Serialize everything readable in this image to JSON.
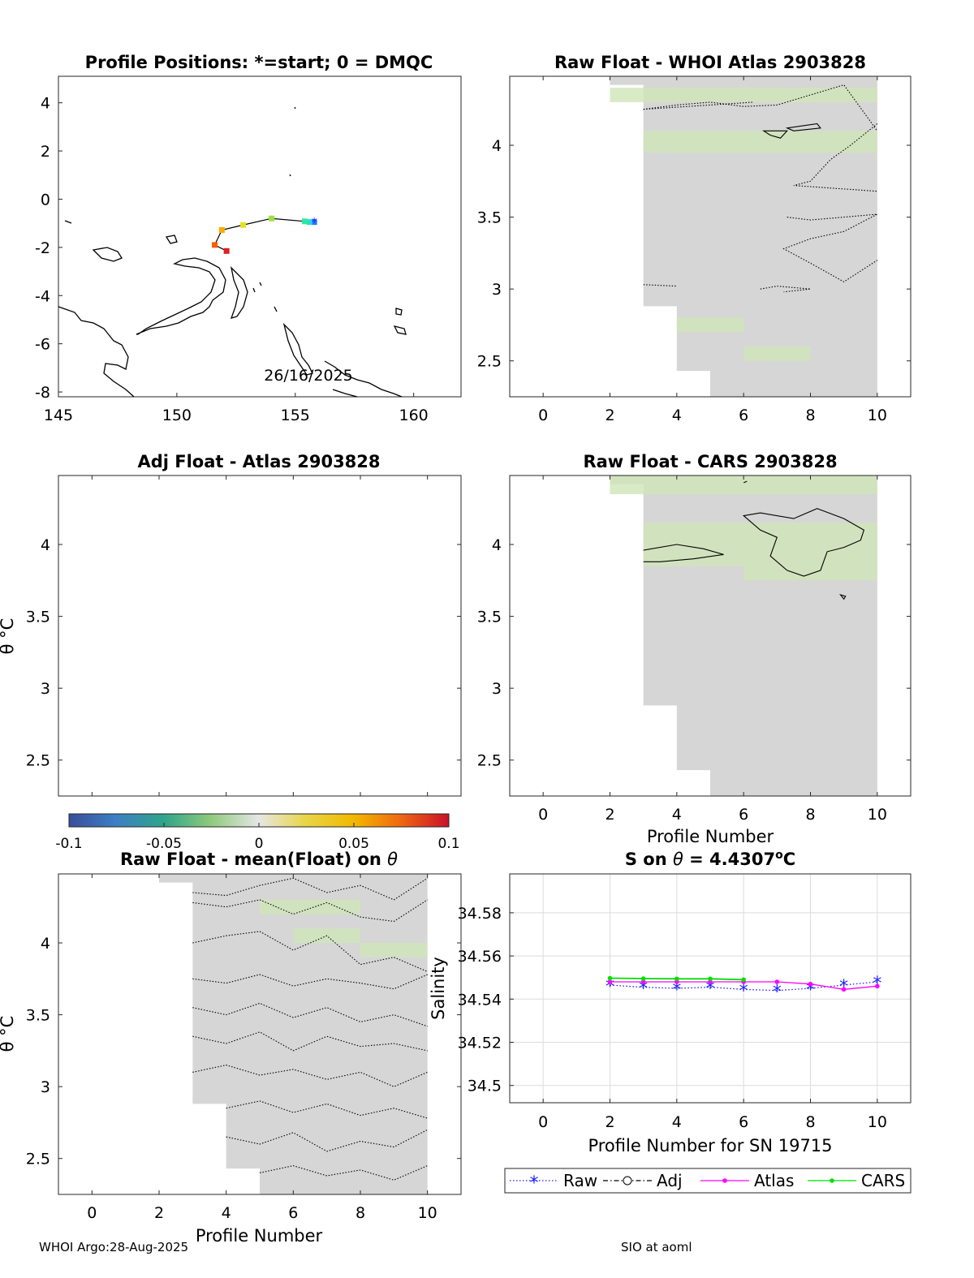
{
  "chart_data": [
    {
      "type": "map",
      "title": "Profile Positions: *=start; 0 = DMQC",
      "date_label": "26/16/2025",
      "xlim": [
        145,
        162
      ],
      "ylim": [
        -8.2,
        5.1
      ],
      "xticks": [
        145,
        150,
        155,
        160
      ],
      "yticks": [
        -8,
        -6,
        -4,
        -2,
        0,
        2,
        4
      ],
      "track": [
        {
          "lon": 155.8,
          "lat": -0.95,
          "color": "#1f77ff"
        },
        {
          "lon": 155.6,
          "lat": -0.95,
          "color": "#2fd6d6"
        },
        {
          "lon": 155.4,
          "lat": -0.92,
          "color": "#30e8a0"
        },
        {
          "lon": 154.0,
          "lat": -0.8,
          "color": "#9be23a"
        },
        {
          "lon": 152.8,
          "lat": -1.07,
          "color": "#e8e020"
        },
        {
          "lon": 151.9,
          "lat": -1.28,
          "color": "#ffaa00"
        },
        {
          "lon": 151.6,
          "lat": -1.9,
          "color": "#ff5a00"
        },
        {
          "lon": 152.1,
          "lat": -2.15,
          "color": "#e02020"
        }
      ]
    },
    {
      "type": "heatmap",
      "title": "Raw Float - WHOI Atlas  2903828",
      "xlabel": "",
      "ylabel": "",
      "xlim": [
        -1,
        11
      ],
      "ylim": [
        2.25,
        4.48
      ],
      "xticks": [
        0,
        2,
        4,
        6,
        8,
        10
      ],
      "yticks": [
        2.5,
        3,
        3.5,
        4
      ]
    },
    {
      "type": "heatmap",
      "title": "Adj Float - Atlas  2903828",
      "xlabel": "",
      "ylabel": "θ °C",
      "xlim": [
        -1,
        11
      ],
      "ylim": [
        2.25,
        4.48
      ],
      "xticks": [],
      "yticks": [
        2.5,
        3,
        3.5,
        4
      ]
    },
    {
      "type": "heatmap",
      "title": "Raw Float - CARS  2903828",
      "xlabel": "Profile Number",
      "ylabel": "",
      "xlim": [
        -1,
        11
      ],
      "ylim": [
        2.25,
        4.48
      ],
      "xticks": [
        0,
        2,
        4,
        6,
        8,
        10
      ],
      "yticks": [
        2.5,
        3,
        3.5,
        4
      ]
    },
    {
      "type": "colorbar",
      "range": [
        -0.1,
        0.1
      ],
      "ticks": [
        "-0.1",
        "-0.05",
        "0",
        "0.05",
        "0.1"
      ]
    },
    {
      "type": "heatmap",
      "title": "Raw Float - mean(Float) on θ",
      "xlabel": "Profile Number",
      "ylabel": "θ °C",
      "xlim": [
        -1,
        11
      ],
      "ylim": [
        2.25,
        4.48
      ],
      "xticks": [
        0,
        2,
        4,
        6,
        8,
        10
      ],
      "yticks": [
        2.5,
        3,
        3.5,
        4
      ]
    },
    {
      "type": "line",
      "title": "S on θ = 4.4307°C",
      "xlabel": "Profile Number for SN 19715",
      "ylabel": "Salinity",
      "xlim": [
        -1,
        11
      ],
      "ylim": [
        34.492,
        34.598
      ],
      "xticks": [
        0,
        2,
        4,
        6,
        8,
        10
      ],
      "yticks": [
        "34.5",
        "34.52",
        "34.54",
        "34.56",
        "34.58"
      ],
      "grid": true,
      "legend_position": "bottom",
      "series": [
        {
          "name": "Raw",
          "color": "#1f1fff",
          "x": [
            2,
            3,
            4,
            5,
            6,
            7,
            8,
            9,
            10
          ],
          "values": [
            34.5465,
            34.5455,
            34.545,
            34.5455,
            34.5445,
            34.544,
            34.545,
            34.5465,
            34.548
          ]
        },
        {
          "name": "Adj",
          "color": "#000000",
          "x": [],
          "values": []
        },
        {
          "name": "Atlas",
          "color": "#ff00ff",
          "x": [
            2,
            3,
            4,
            5,
            6,
            7,
            8,
            9,
            10
          ],
          "values": [
            34.548,
            34.548,
            34.548,
            34.548,
            34.548,
            34.548,
            34.547,
            34.5445,
            34.546
          ]
        },
        {
          "name": "CARS",
          "color": "#00e000",
          "x": [
            2,
            3,
            4,
            5,
            6
          ],
          "values": [
            34.5497,
            34.5495,
            34.5494,
            34.5494,
            34.549
          ]
        }
      ]
    }
  ],
  "footer": {
    "left": "WHOI Argo:28-Aug-2025",
    "right": "SIO at aoml"
  }
}
